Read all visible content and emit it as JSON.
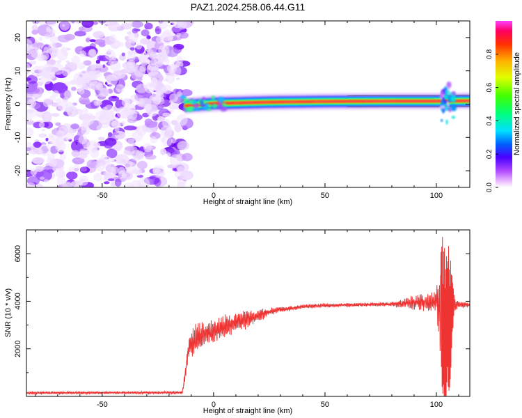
{
  "chart_data": [
    {
      "type": "heatmap",
      "title": "PAZ1.2024.258.06.44.G11",
      "xlabel": "Height of straight line (km)",
      "ylabel": "Frequency (Hz)",
      "xlim": [
        -84,
        115
      ],
      "ylim": [
        -25,
        25
      ],
      "x_ticks": [
        -50,
        0,
        50,
        100
      ],
      "y_ticks": [
        -20,
        -10,
        0,
        10,
        20
      ],
      "colorbar": {
        "label": "Normalized spectral amplitude",
        "ticks": [
          0.0,
          0.2,
          0.4,
          0.6,
          0.8
        ],
        "range": [
          0,
          1
        ],
        "colormap": [
          "#ffffff",
          "#ff00ff",
          "#0000ff",
          "#00ffff",
          "#00ff00",
          "#ffff00",
          "#ff8000",
          "#ff0000",
          "#ff00ff"
        ]
      },
      "features": {
        "noise_region_x": [
          -84,
          -13
        ],
        "signal_line_x": [
          -13,
          115
        ],
        "signal_frequency": [
          {
            "x": -13,
            "y": -0.5
          },
          {
            "x": 0,
            "y": 0.2
          },
          {
            "x": 25,
            "y": 0.6
          },
          {
            "x": 50,
            "y": 0.8
          },
          {
            "x": 80,
            "y": 0.9
          },
          {
            "x": 100,
            "y": 0.9
          },
          {
            "x": 115,
            "y": 1.0
          }
        ],
        "disturbance_x": [
          102,
          108
        ]
      },
      "grid": false
    },
    {
      "type": "line",
      "xlabel": "Height of straight line (km)",
      "ylabel": "SNR (10 * v/v)",
      "xlim": [
        -84,
        115
      ],
      "ylim": [
        0,
        7000
      ],
      "x_ticks": [
        -50,
        0,
        50,
        100
      ],
      "y_ticks": [
        2000,
        4000,
        6000
      ],
      "series_color": "#ee3333",
      "envelope": {
        "x": [
          -84,
          -14,
          -11,
          -9,
          -6,
          -3,
          0,
          5,
          10,
          15,
          20,
          25,
          30,
          35,
          40,
          50,
          60,
          70,
          80,
          85,
          90,
          95,
          100,
          102,
          103,
          104,
          105,
          106,
          107,
          108,
          110,
          115
        ],
        "mean": [
          150,
          160,
          2100,
          2300,
          2500,
          2600,
          2700,
          2900,
          3100,
          3250,
          3400,
          3550,
          3650,
          3700,
          3780,
          3820,
          3840,
          3860,
          3880,
          3900,
          3950,
          3950,
          3950,
          3800,
          3000,
          2500,
          3500,
          2800,
          3800,
          3900,
          3850,
          3850
        ],
        "spread": [
          50,
          50,
          600,
          600,
          600,
          550,
          500,
          450,
          400,
          350,
          250,
          150,
          100,
          100,
          80,
          80,
          80,
          80,
          80,
          200,
          300,
          350,
          400,
          2500,
          3000,
          3000,
          2500,
          2500,
          1500,
          300,
          150,
          100
        ]
      },
      "grid": false
    }
  ]
}
